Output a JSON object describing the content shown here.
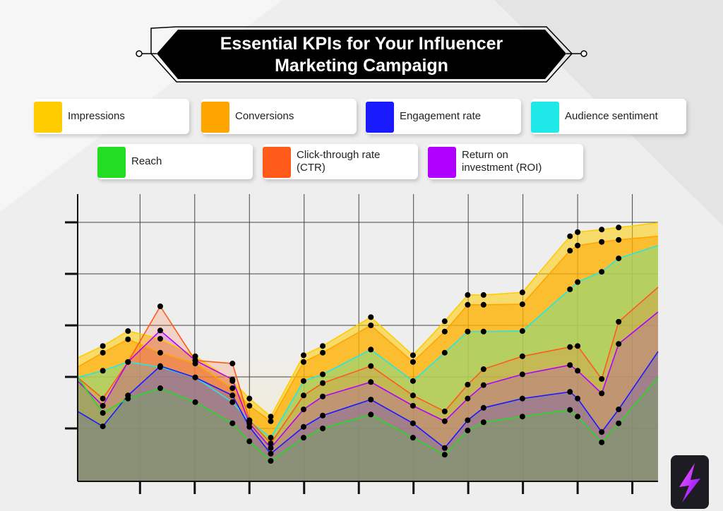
{
  "chart_data": {
    "type": "area",
    "title": "Essential KPIs for Your Influencer Marketing Campaign",
    "x": [
      -0.14,
      0.32,
      0.78,
      1.37,
      2.01,
      2.69,
      3.0,
      3.39,
      3.99,
      4.34,
      5.22,
      5.99,
      6.57,
      6.99,
      7.28,
      7.99,
      8.86,
      9.0,
      9.44,
      9.75,
      10.47
    ],
    "xlim": [
      -0.14,
      10.47
    ],
    "xticks": [
      1,
      2,
      3,
      4,
      5,
      6,
      7,
      8,
      9,
      10
    ],
    "ylim": [
      0,
      5.5
    ],
    "yticks": [
      1,
      2,
      3,
      4,
      5
    ],
    "grid": true,
    "series": [
      {
        "name": "Impressions",
        "color": "#ffcc00",
        "values": [
          2.37,
          2.6,
          2.89,
          2.74,
          2.4,
          1.92,
          1.58,
          1.23,
          2.42,
          2.6,
          3.16,
          2.42,
          3.08,
          3.59,
          3.59,
          3.64,
          4.73,
          4.81,
          4.86,
          4.9,
          4.99
        ]
      },
      {
        "name": "Conversions",
        "color": "#ffa500",
        "values": [
          2.19,
          2.47,
          2.73,
          2.47,
          2.26,
          1.78,
          1.44,
          1.14,
          2.29,
          2.47,
          3.0,
          2.29,
          2.88,
          3.4,
          3.4,
          3.41,
          4.45,
          4.55,
          4.62,
          4.66,
          4.73
        ]
      },
      {
        "name": "Audience sentiment",
        "color": "#1ee8e8",
        "values": [
          1.99,
          2.12,
          2.29,
          2.19,
          1.99,
          1.51,
          1.14,
          0.82,
          1.92,
          2.05,
          2.53,
          1.92,
          2.47,
          2.88,
          2.88,
          2.89,
          3.7,
          3.84,
          4.04,
          4.3,
          4.55
        ]
      },
      {
        "name": "Click-through rate (CTR)",
        "color": "#ff5a1a",
        "values": [
          1.99,
          1.58,
          2.29,
          3.37,
          2.32,
          2.26,
          1.16,
          0.71,
          1.64,
          1.88,
          2.21,
          1.64,
          1.33,
          1.85,
          2.15,
          2.4,
          2.58,
          2.6,
          1.96,
          3.07,
          3.74
        ]
      },
      {
        "name": "Return on investment (ROI)",
        "color": "#b000ff",
        "values": [
          1.92,
          1.44,
          2.29,
          2.9,
          2.32,
          1.95,
          1.1,
          0.62,
          1.37,
          1.62,
          1.9,
          1.44,
          1.14,
          1.58,
          1.84,
          2.05,
          2.23,
          2.12,
          1.68,
          2.64,
          3.26
        ]
      },
      {
        "name": "Engagement rate",
        "color": "#1a1aff",
        "values": [
          1.33,
          1.04,
          1.64,
          2.21,
          1.99,
          1.64,
          1.03,
          0.51,
          1.03,
          1.25,
          1.56,
          1.1,
          0.62,
          1.16,
          1.4,
          1.58,
          1.71,
          1.58,
          0.93,
          1.37,
          2.49
        ]
      },
      {
        "name": "Reach",
        "color": "#22dd22",
        "values": [
          1.99,
          1.3,
          1.58,
          1.78,
          1.51,
          1.1,
          0.75,
          0.37,
          0.82,
          1.0,
          1.27,
          0.82,
          0.49,
          0.96,
          1.12,
          1.23,
          1.36,
          1.23,
          0.73,
          1.1,
          1.99
        ]
      }
    ]
  }
}
